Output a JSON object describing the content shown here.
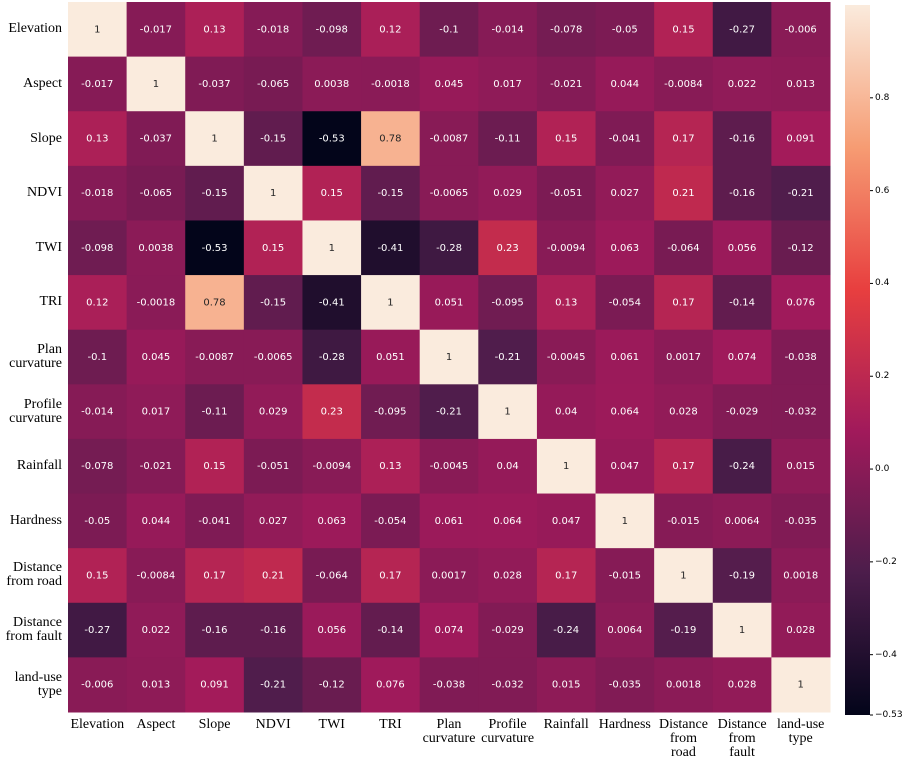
{
  "chart_data": {
    "type": "heatmap",
    "categories": [
      "Elevation",
      "Aspect",
      "Slope",
      "NDVI",
      "TWI",
      "TRI",
      "Plan curvature",
      "Profile curvature",
      "Rainfall",
      "Hardness",
      "Distance from road",
      "Distance from fault",
      "land-use type"
    ],
    "values": [
      [
        1,
        -0.017,
        0.13,
        -0.018,
        -0.098,
        0.12,
        -0.1,
        -0.014,
        -0.078,
        -0.05,
        0.15,
        -0.27,
        -0.006
      ],
      [
        -0.017,
        1,
        -0.037,
        -0.065,
        0.0038,
        -0.0018,
        0.045,
        0.017,
        -0.021,
        0.044,
        -0.0084,
        0.022,
        0.013
      ],
      [
        0.13,
        -0.037,
        1,
        -0.15,
        -0.53,
        0.78,
        -0.0087,
        -0.11,
        0.15,
        -0.041,
        0.17,
        -0.16,
        0.091
      ],
      [
        -0.018,
        -0.065,
        -0.15,
        1,
        0.15,
        -0.15,
        -0.0065,
        0.029,
        -0.051,
        0.027,
        0.21,
        -0.16,
        -0.21
      ],
      [
        -0.098,
        0.0038,
        -0.53,
        0.15,
        1,
        -0.41,
        -0.28,
        0.23,
        -0.0094,
        0.063,
        -0.064,
        0.056,
        -0.12
      ],
      [
        0.12,
        -0.0018,
        0.78,
        -0.15,
        -0.41,
        1,
        0.051,
        -0.095,
        0.13,
        -0.054,
        0.17,
        -0.14,
        0.076
      ],
      [
        -0.1,
        0.045,
        -0.0087,
        -0.0065,
        -0.28,
        0.051,
        1,
        -0.21,
        -0.0045,
        0.061,
        0.0017,
        0.074,
        -0.038
      ],
      [
        -0.014,
        0.017,
        -0.11,
        0.029,
        0.23,
        -0.095,
        -0.21,
        1,
        0.04,
        0.064,
        0.028,
        -0.029,
        -0.032
      ],
      [
        -0.078,
        -0.021,
        0.15,
        -0.051,
        -0.0094,
        0.13,
        -0.0045,
        0.04,
        1,
        0.047,
        0.17,
        -0.24,
        0.015
      ],
      [
        -0.05,
        0.044,
        -0.041,
        0.027,
        0.063,
        -0.054,
        0.061,
        0.064,
        0.047,
        1,
        -0.015,
        0.0064,
        -0.035
      ],
      [
        0.15,
        -0.0084,
        0.17,
        0.21,
        -0.064,
        0.17,
        0.0017,
        0.028,
        0.17,
        -0.015,
        1,
        -0.19,
        0.0018
      ],
      [
        -0.27,
        0.022,
        -0.16,
        -0.16,
        0.056,
        -0.14,
        0.074,
        -0.029,
        -0.24,
        0.0064,
        -0.19,
        1,
        0.028
      ],
      [
        -0.006,
        0.013,
        0.091,
        -0.21,
        -0.12,
        0.076,
        -0.038,
        -0.032,
        0.015,
        -0.035,
        0.0018,
        0.028,
        1
      ]
    ],
    "zlim": [
      -0.53,
      1
    ],
    "zticks": [
      0.8,
      0.6,
      0.4,
      0.2,
      {
        "value": 0,
        "label": "0.0"
      },
      {
        "value": -0.2,
        "label": "−0.2"
      },
      {
        "value": -0.4,
        "label": "−0.4"
      },
      {
        "value": -0.53,
        "label": "−0.53"
      }
    ],
    "colormap": [
      "#03051a",
      "#4c1d4b",
      "#a11a5b",
      "#e83f3f",
      "#f69c73",
      "#faebdd"
    ]
  }
}
